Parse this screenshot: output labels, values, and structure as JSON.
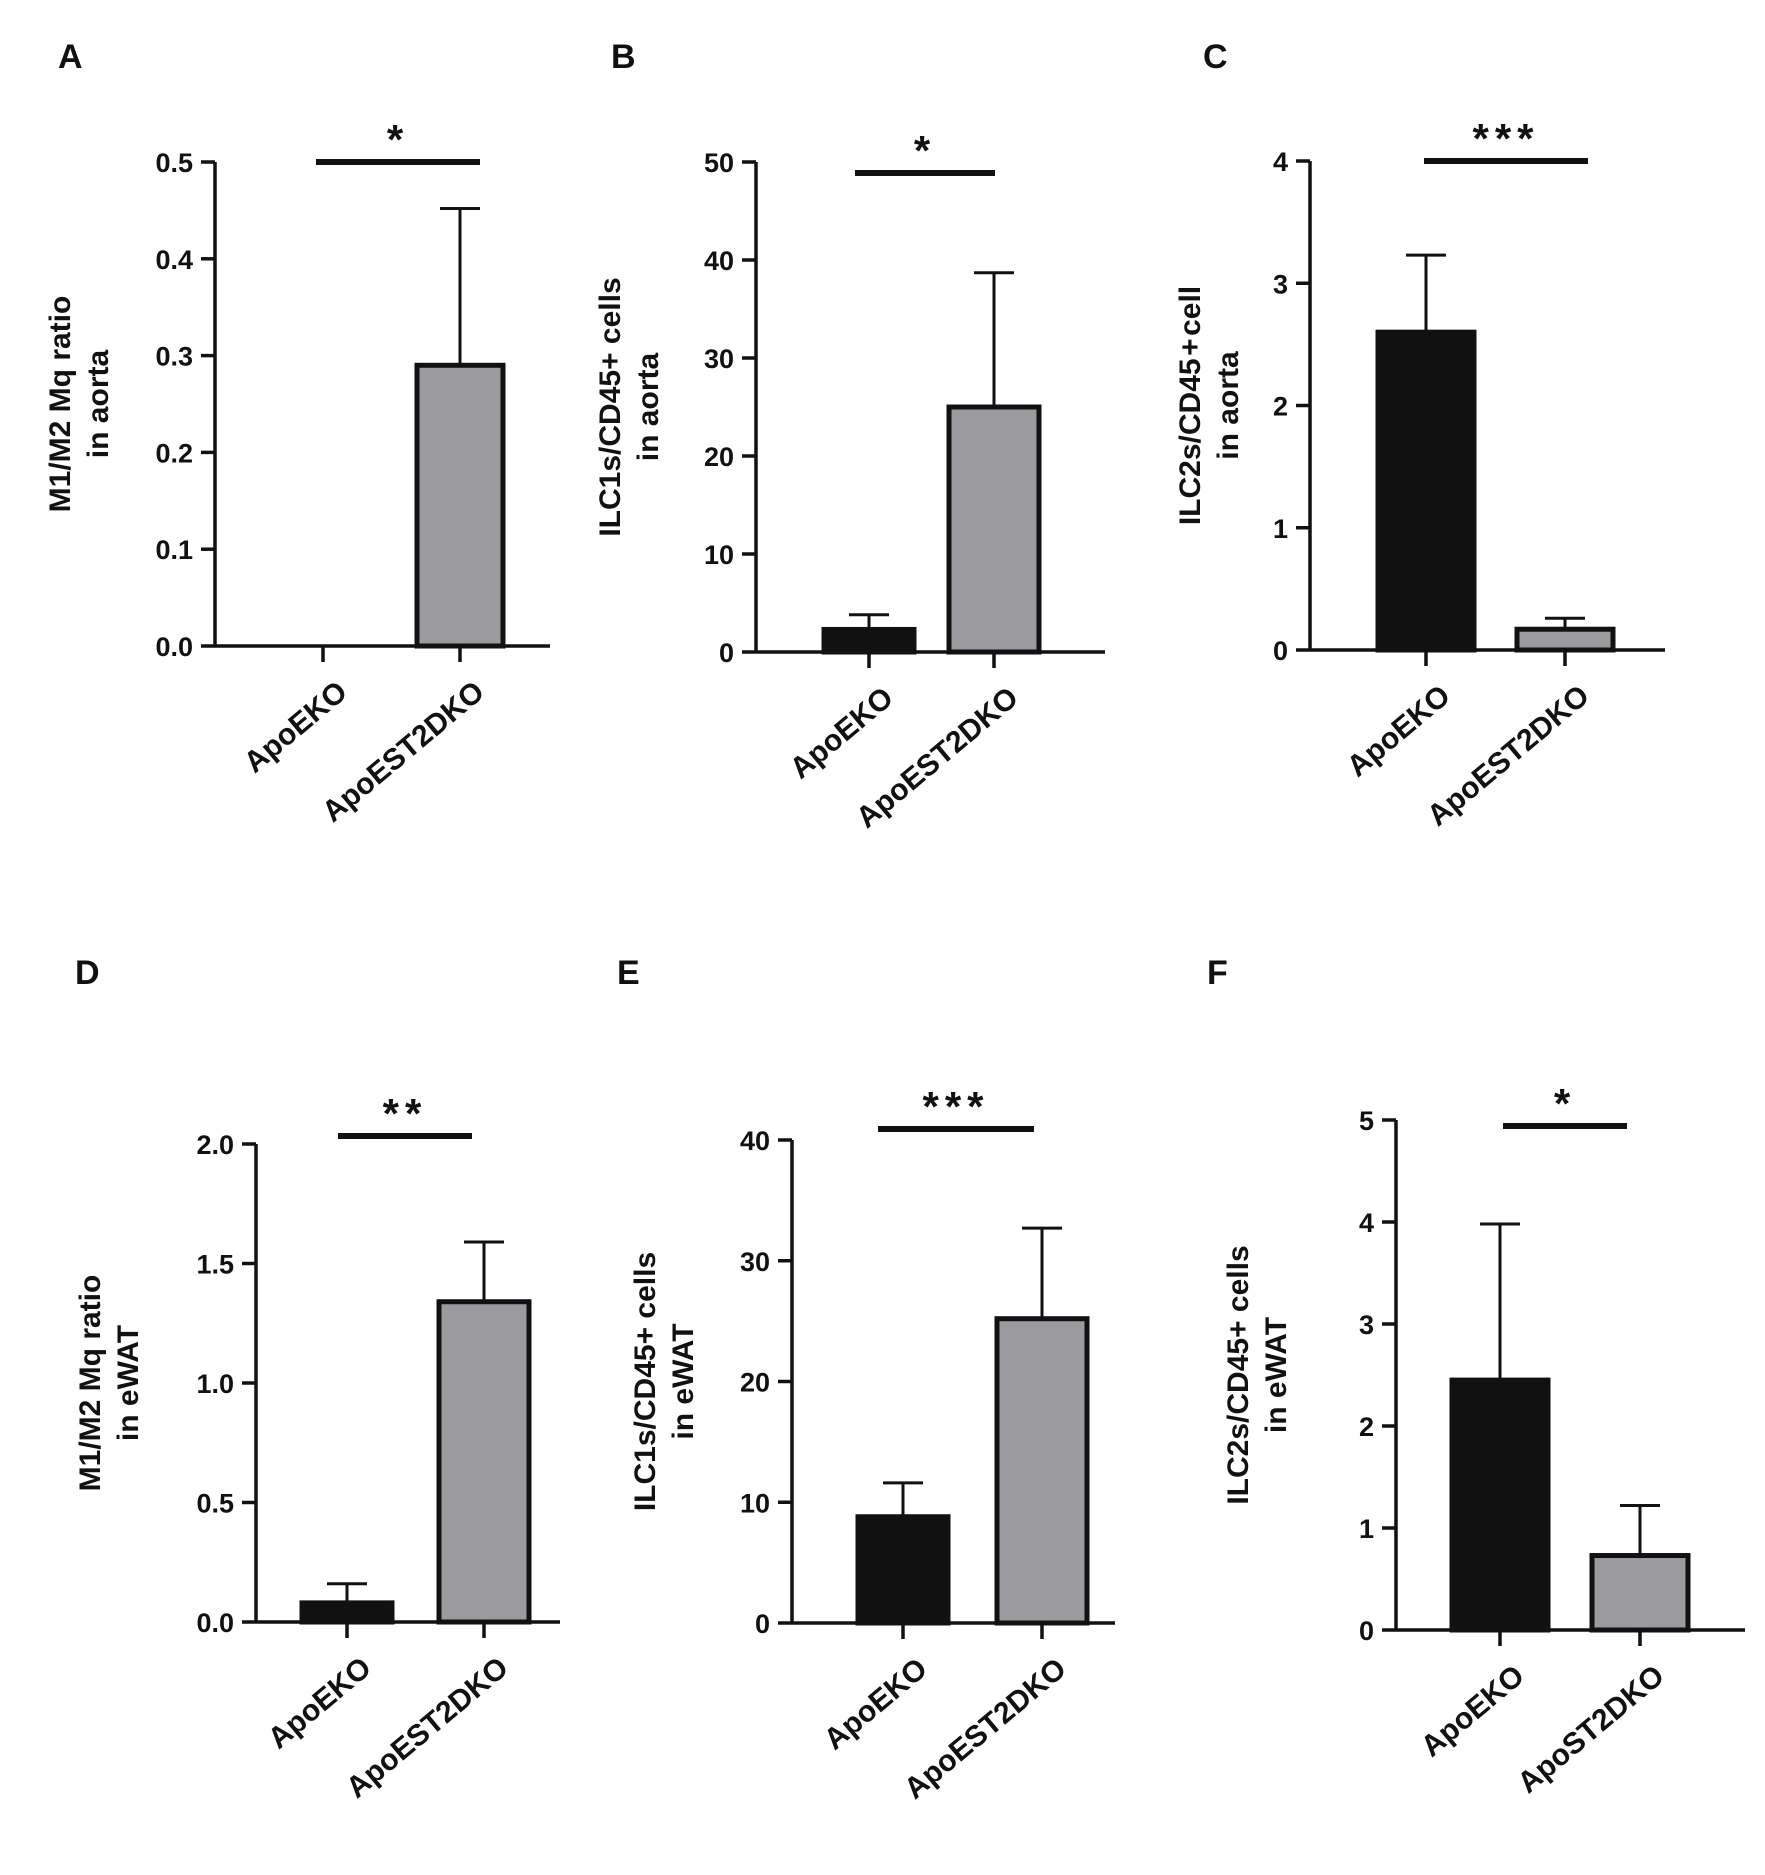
{
  "chart_data": [
    {
      "panel": "A",
      "type": "bar",
      "ylabel": [
        "M1/M2 Mq ratio",
        "in aorta"
      ],
      "categories": [
        "ApoEKO",
        "ApoEST2DKO"
      ],
      "values": [
        0.0,
        0.29
      ],
      "errors": [
        0.0,
        0.162
      ],
      "colors": [
        "#111111",
        "#9b9b9f"
      ],
      "ylim": [
        0,
        0.5
      ],
      "yticks": [
        "0.0",
        "0.1",
        "0.2",
        "0.3",
        "0.4",
        "0.5"
      ],
      "significance": "*"
    },
    {
      "panel": "B",
      "type": "bar",
      "ylabel": [
        "ILC1s/CD45+ cells",
        "in aorta"
      ],
      "categories": [
        "ApoEKO",
        "ApoEST2DKO"
      ],
      "values": [
        2.3,
        25.0
      ],
      "errors": [
        1.5,
        13.7
      ],
      "colors": [
        "#111111",
        "#9b9b9f"
      ],
      "ylim": [
        0,
        50
      ],
      "yticks": [
        "0",
        "10",
        "20",
        "30",
        "40",
        "50"
      ],
      "significance": "*"
    },
    {
      "panel": "C",
      "type": "bar",
      "ylabel": [
        "ILC2s/CD45 + cell",
        "in aorta"
      ],
      "categories": [
        "ApoEKO",
        "ApoEST2DKO"
      ],
      "values": [
        2.6,
        0.17
      ],
      "errors": [
        0.63,
        0.09
      ],
      "colors": [
        "#111111",
        "#9b9b9f"
      ],
      "ylim": [
        0,
        4
      ],
      "yticks": [
        "0",
        "1",
        "2",
        "3",
        "4"
      ],
      "significance": "***"
    },
    {
      "panel": "D",
      "type": "bar",
      "ylabel": [
        "M1/M2 Mq ratio",
        "in eWAT"
      ],
      "categories": [
        "ApoEKO",
        "ApoEST2DKO"
      ],
      "values": [
        0.08,
        1.34
      ],
      "errors": [
        0.08,
        0.25
      ],
      "colors": [
        "#111111",
        "#9b9b9f"
      ],
      "ylim": [
        0,
        2.0
      ],
      "yticks": [
        "0.0",
        "0.5",
        "1.0",
        "1.5",
        "2.0"
      ],
      "significance": "**"
    },
    {
      "panel": "E",
      "type": "bar",
      "ylabel": [
        "ILC1s/CD45+ cells",
        "in eWAT"
      ],
      "categories": [
        "ApoEKO",
        "ApoEST2DKO"
      ],
      "values": [
        8.8,
        25.2
      ],
      "errors": [
        2.8,
        7.5
      ],
      "colors": [
        "#111111",
        "#9b9b9f"
      ],
      "ylim": [
        0,
        40
      ],
      "yticks": [
        "0",
        "10",
        "20",
        "30",
        "40"
      ],
      "significance": "***"
    },
    {
      "panel": "F",
      "type": "bar",
      "ylabel": [
        "ILC2s/CD45+ cells",
        "in eWAT"
      ],
      "categories": [
        "ApoEKO",
        "ApoST2DKO"
      ],
      "values": [
        2.45,
        0.73
      ],
      "errors": [
        1.53,
        0.49
      ],
      "colors": [
        "#111111",
        "#9b9b9f"
      ],
      "ylim": [
        0,
        5
      ],
      "yticks": [
        "0",
        "1",
        "2",
        "3",
        "4",
        "5"
      ],
      "significance": "*"
    }
  ]
}
